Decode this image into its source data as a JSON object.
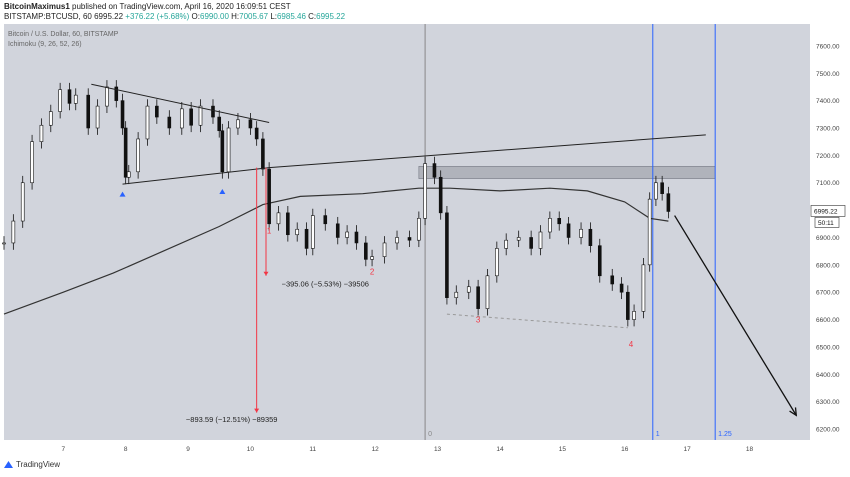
{
  "header": {
    "author": "BitcoinMaximus1",
    "published": "published on TradingView.com, April 16, 2020 16:09:51 CEST",
    "symbol": "BITSTAMP:BTCUSD, 60",
    "price": "6995.22",
    "change": "+376.22 (+5.68%)",
    "ohlc_labels": [
      "O:",
      "H:",
      "L:",
      "C:"
    ],
    "ohlc_values": [
      "6990.00",
      "7005.67",
      "6985.46",
      "6995.22"
    ]
  },
  "watermark": {
    "title": "Bitcoin / U.S. Dollar, 60, BITSTAMP",
    "indicator": "Ichimoku (9, 26, 52, 26)"
  },
  "footer": {
    "brand": "TradingView"
  },
  "colors": {
    "background": "#d1d4dc",
    "price_line": "#2962ff",
    "measure": "#f23645",
    "support_marker": "#2962ff",
    "fib_line": "#2962ff",
    "positive": "#26a69a"
  },
  "chart_data": {
    "type": "candlestick",
    "ylim": [
      6160,
      7680
    ],
    "yticks": [
      "7600.00",
      "7500.00",
      "7400.00",
      "7300.00",
      "7200.00",
      "7100.00",
      "7000.00",
      "6900.00",
      "6800.00",
      "6700.00",
      "6600.00",
      "6500.00",
      "6400.00",
      "6300.00",
      "6200.00"
    ],
    "xticks": [
      "7",
      "8",
      "9",
      "10",
      "11",
      "12",
      "13",
      "14",
      "15",
      "16",
      "17",
      "18"
    ],
    "x_range_days": [
      6.05,
      18.97
    ],
    "last_price": "6995.22",
    "countdown": "50:11",
    "ohlc_series": [
      [
        6.05,
        6880
      ],
      [
        6.2,
        6960
      ],
      [
        6.35,
        7100
      ],
      [
        6.5,
        7250
      ],
      [
        6.65,
        7310
      ],
      [
        6.8,
        7360
      ],
      [
        6.95,
        7440
      ],
      [
        7.1,
        7390
      ],
      [
        7.2,
        7420
      ],
      [
        7.4,
        7300
      ],
      [
        7.55,
        7380
      ],
      [
        7.7,
        7450
      ],
      [
        7.85,
        7400
      ],
      [
        7.95,
        7300
      ],
      [
        8.0,
        7120
      ],
      [
        8.05,
        7140
      ],
      [
        8.2,
        7260
      ],
      [
        8.35,
        7380
      ],
      [
        8.5,
        7340
      ],
      [
        8.7,
        7300
      ],
      [
        8.9,
        7370
      ],
      [
        9.05,
        7310
      ],
      [
        9.2,
        7380
      ],
      [
        9.4,
        7340
      ],
      [
        9.5,
        7290
      ],
      [
        9.55,
        7140
      ],
      [
        9.65,
        7300
      ],
      [
        9.8,
        7330
      ],
      [
        10.0,
        7300
      ],
      [
        10.1,
        7260
      ],
      [
        10.2,
        7150
      ],
      [
        10.3,
        6950
      ],
      [
        10.45,
        6990
      ],
      [
        10.6,
        6910
      ],
      [
        10.75,
        6930
      ],
      [
        10.9,
        6860
      ],
      [
        11.0,
        6980
      ],
      [
        11.2,
        6950
      ],
      [
        11.4,
        6900
      ],
      [
        11.55,
        6920
      ],
      [
        11.7,
        6880
      ],
      [
        11.85,
        6820
      ],
      [
        11.95,
        6830
      ],
      [
        12.15,
        6880
      ],
      [
        12.35,
        6900
      ],
      [
        12.55,
        6890
      ],
      [
        12.7,
        6970
      ],
      [
        12.8,
        7170
      ],
      [
        12.95,
        7120
      ],
      [
        13.05,
        6990
      ],
      [
        13.15,
        6680
      ],
      [
        13.3,
        6700
      ],
      [
        13.5,
        6720
      ],
      [
        13.65,
        6640
      ],
      [
        13.8,
        6760
      ],
      [
        13.95,
        6860
      ],
      [
        14.1,
        6890
      ],
      [
        14.3,
        6900
      ],
      [
        14.5,
        6860
      ],
      [
        14.65,
        6920
      ],
      [
        14.8,
        6970
      ],
      [
        14.95,
        6950
      ],
      [
        15.1,
        6900
      ],
      [
        15.3,
        6930
      ],
      [
        15.45,
        6870
      ],
      [
        15.6,
        6760
      ],
      [
        15.8,
        6730
      ],
      [
        15.95,
        6700
      ],
      [
        16.05,
        6600
      ],
      [
        16.15,
        6630
      ],
      [
        16.3,
        6800
      ],
      [
        16.4,
        7040
      ],
      [
        16.5,
        7100
      ],
      [
        16.6,
        7060
      ],
      [
        16.7,
        6995
      ]
    ],
    "ichimoku_line": [
      [
        6.05,
        6620
      ],
      [
        7.0,
        6700
      ],
      [
        7.8,
        6770
      ],
      [
        8.6,
        6850
      ],
      [
        9.5,
        6940
      ],
      [
        10.2,
        7020
      ],
      [
        10.8,
        7050
      ],
      [
        11.8,
        7060
      ],
      [
        12.7,
        7080
      ],
      [
        13.2,
        7080
      ],
      [
        14.0,
        7070
      ],
      [
        14.8,
        7080
      ],
      [
        15.4,
        7070
      ],
      [
        16.0,
        7030
      ],
      [
        16.4,
        6970
      ],
      [
        16.7,
        6960
      ]
    ],
    "trendlines": [
      {
        "from": [
          7.45,
          7460
        ],
        "to": [
          10.3,
          7320
        ],
        "color": "#222"
      },
      {
        "from": [
          7.95,
          7095
        ],
        "to": [
          10.3,
          7155
        ],
        "color": "#222"
      },
      {
        "from": [
          10.3,
          7155
        ],
        "to": [
          17.3,
          7275
        ],
        "color": "#222"
      },
      {
        "from": [
          13.15,
          6620
        ],
        "to": [
          16.05,
          6570
        ],
        "color": "#999",
        "dashed": true
      }
    ],
    "resistance_box": {
      "x": [
        12.7,
        17.45
      ],
      "y": [
        7115,
        7160
      ]
    },
    "forecast_arrow": {
      "from": [
        16.8,
        6980
      ],
      "to": [
        18.75,
        6250
      ]
    },
    "support_markers": [
      [
        7.95,
        7060
      ],
      [
        9.55,
        7070
      ]
    ],
    "vertical_lines": [
      {
        "x": 12.8,
        "label": "0",
        "color": "#888"
      },
      {
        "x": 16.45,
        "label": "1",
        "color": "#2962ff"
      },
      {
        "x": 17.45,
        "label": "1.25",
        "color": "#2962ff"
      }
    ],
    "measures": [
      {
        "x": 10.25,
        "from": 7155,
        "to": 6760,
        "label": "−395.06 (−5.53%) −39506",
        "label_pos": [
          11.2,
          6720
        ]
      },
      {
        "x": 10.1,
        "from": 7155,
        "to": 6260,
        "label": "−893.59 (−12.51%) −89359",
        "label_pos": [
          9.7,
          6225
        ]
      }
    ],
    "wave_labels": [
      {
        "text": "1",
        "x": 10.3,
        "y": 6915
      },
      {
        "text": "2",
        "x": 11.95,
        "y": 6765
      },
      {
        "text": "3",
        "x": 13.65,
        "y": 6590
      },
      {
        "text": "4",
        "x": 16.1,
        "y": 6500
      }
    ]
  }
}
